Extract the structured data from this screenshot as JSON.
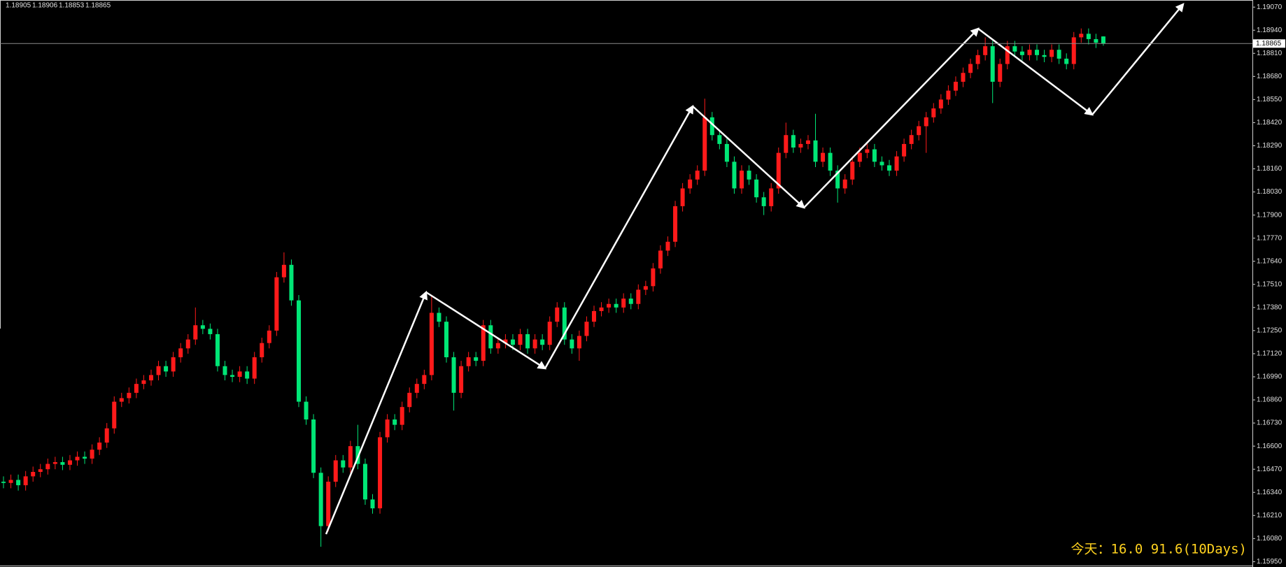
{
  "chart_data": {
    "type": "candlestick",
    "up_color": "#ff1a1a",
    "down_color": "#00e676",
    "ylim": [
      1.1592,
      1.1911
    ],
    "yticks": [
      {
        "value": 1.1907,
        "label": "1.19070"
      },
      {
        "value": 1.1894,
        "label": "1.18940"
      },
      {
        "value": 1.1881,
        "label": "1.18810"
      },
      {
        "value": 1.1868,
        "label": "1.18680"
      },
      {
        "value": 1.1855,
        "label": "1.18550"
      },
      {
        "value": 1.1842,
        "label": "1.18420"
      },
      {
        "value": 1.1829,
        "label": "1.18290"
      },
      {
        "value": 1.1816,
        "label": "1.18160"
      },
      {
        "value": 1.1803,
        "label": "1.18030"
      },
      {
        "value": 1.179,
        "label": "1.17900"
      },
      {
        "value": 1.1777,
        "label": "1.17770"
      },
      {
        "value": 1.1764,
        "label": "1.17640"
      },
      {
        "value": 1.1751,
        "label": "1.17510"
      },
      {
        "value": 1.1738,
        "label": "1.17380"
      },
      {
        "value": 1.1725,
        "label": "1.17250"
      },
      {
        "value": 1.1712,
        "label": "1.17120"
      },
      {
        "value": 1.1699,
        "label": "1.16990"
      },
      {
        "value": 1.1686,
        "label": "1.16860"
      },
      {
        "value": 1.1673,
        "label": "1.16730"
      },
      {
        "value": 1.166,
        "label": "1.16600"
      },
      {
        "value": 1.1647,
        "label": "1.16470"
      },
      {
        "value": 1.1634,
        "label": "1.16340"
      },
      {
        "value": 1.1621,
        "label": "1.16210"
      },
      {
        "value": 1.1608,
        "label": "1.16080"
      },
      {
        "value": 1.1595,
        "label": "1.15950"
      }
    ],
    "annotation": "今天：16.0   91.6(10Days)",
    "open": [
      1.164,
      1.16393,
      1.1641,
      1.1638,
      1.1643,
      1.16455,
      1.1647,
      1.165,
      1.1651,
      1.16495,
      1.1652,
      1.1654,
      1.1653,
      1.1658,
      1.1662,
      1.167,
      1.1685,
      1.1687,
      1.169,
      1.1695,
      1.1697,
      1.17,
      1.1705,
      1.1702,
      1.171,
      1.1715,
      1.172,
      1.1728,
      1.1726,
      1.1723,
      1.1705,
      1.17,
      1.1699,
      1.1702,
      1.1698,
      1.171,
      1.1718,
      1.1725,
      1.1755,
      1.1762,
      1.1742,
      1.1685,
      1.1675,
      1.1645,
      1.1615,
      1.164,
      1.1652,
      1.1648,
      1.166,
      1.165,
      1.163,
      1.1625,
      1.1665,
      1.1675,
      1.1672,
      1.1682,
      1.169,
      1.1695,
      1.17,
      1.1735,
      1.173,
      1.171,
      1.169,
      1.1705,
      1.171,
      1.1708,
      1.1728,
      1.1715,
      1.1718,
      1.172,
      1.1717,
      1.1723,
      1.1715,
      1.172,
      1.1717,
      1.173,
      1.1738,
      1.172,
      1.1715,
      1.1722,
      1.173,
      1.1736,
      1.1738,
      1.174,
      1.1738,
      1.1743,
      1.174,
      1.1748,
      1.175,
      1.176,
      1.177,
      1.1775,
      1.1795,
      1.1805,
      1.181,
      1.1815,
      1.1845,
      1.1835,
      1.183,
      1.182,
      1.1805,
      1.1815,
      1.181,
      1.18,
      1.1795,
      1.1805,
      1.1825,
      1.1835,
      1.1828,
      1.183,
      1.1832,
      1.182,
      1.1825,
      1.1815,
      1.1805,
      1.181,
      1.182,
      1.1825,
      1.1827,
      1.182,
      1.1818,
      1.1815,
      1.1823,
      1.183,
      1.1835,
      1.184,
      1.1845,
      1.185,
      1.1855,
      1.186,
      1.1865,
      1.187,
      1.1875,
      1.188,
      1.1885,
      1.1865,
      1.1875,
      1.1885,
      1.1882,
      1.188,
      1.1883,
      1.188,
      1.1879,
      1.1883,
      1.1878,
      1.1875,
      1.189,
      1.1892,
      1.1889,
      1.18905
    ],
    "high": [
      1.1643,
      1.1644,
      1.1644,
      1.1646,
      1.16485,
      1.165,
      1.1653,
      1.1654,
      1.1654,
      1.1655,
      1.1657,
      1.1657,
      1.1661,
      1.1665,
      1.1673,
      1.1688,
      1.169,
      1.1693,
      1.1698,
      1.17,
      1.1703,
      1.1708,
      1.1708,
      1.1713,
      1.1718,
      1.1723,
      1.1738,
      1.1731,
      1.1729,
      1.1726,
      1.1708,
      1.1703,
      1.1705,
      1.1705,
      1.1713,
      1.1721,
      1.1728,
      1.1758,
      1.1769,
      1.1765,
      1.1745,
      1.1688,
      1.1678,
      1.1648,
      1.1643,
      1.1655,
      1.1655,
      1.1663,
      1.1672,
      1.1653,
      1.1633,
      1.1668,
      1.1678,
      1.1678,
      1.1685,
      1.1693,
      1.1698,
      1.1703,
      1.17451,
      1.1738,
      1.1733,
      1.1713,
      1.1708,
      1.1713,
      1.1713,
      1.1731,
      1.1731,
      1.1721,
      1.1723,
      1.1723,
      1.1726,
      1.1726,
      1.1723,
      1.1723,
      1.1733,
      1.1741,
      1.1741,
      1.1723,
      1.1725,
      1.1733,
      1.1739,
      1.1741,
      1.1743,
      1.1743,
      1.1746,
      1.1746,
      1.1751,
      1.1753,
      1.1763,
      1.1773,
      1.1778,
      1.1798,
      1.1808,
      1.1813,
      1.1818,
      1.18555,
      1.1848,
      1.1838,
      1.1833,
      1.1823,
      1.1818,
      1.1818,
      1.1813,
      1.1803,
      1.1808,
      1.1828,
      1.1842,
      1.1838,
      1.1833,
      1.1835,
      1.1847,
      1.1828,
      1.1828,
      1.1818,
      1.1813,
      1.1823,
      1.1828,
      1.183,
      1.183,
      1.1823,
      1.1821,
      1.1826,
      1.1833,
      1.1838,
      1.1843,
      1.1848,
      1.1853,
      1.1858,
      1.1863,
      1.1868,
      1.1873,
      1.1878,
      1.1883,
      1.189,
      1.1888,
      1.1878,
      1.1888,
      1.1888,
      1.1885,
      1.1886,
      1.1886,
      1.1883,
      1.1886,
      1.1886,
      1.1881,
      1.1893,
      1.1895,
      1.1895,
      1.1892,
      1.18906
    ],
    "low": [
      1.16363,
      1.16363,
      1.1635,
      1.1635,
      1.164,
      1.16425,
      1.1644,
      1.1647,
      1.16465,
      1.16465,
      1.1649,
      1.165,
      1.165,
      1.1655,
      1.1659,
      1.1667,
      1.1682,
      1.1684,
      1.1687,
      1.1692,
      1.1694,
      1.1697,
      1.1699,
      1.1699,
      1.1707,
      1.1712,
      1.1717,
      1.1723,
      1.172,
      1.1702,
      1.1697,
      1.1696,
      1.1696,
      1.1695,
      1.1695,
      1.1707,
      1.1715,
      1.1722,
      1.1752,
      1.1739,
      1.1682,
      1.1672,
      1.1642,
      1.16034,
      1.1612,
      1.1637,
      1.1645,
      1.1645,
      1.1647,
      1.1627,
      1.1622,
      1.1622,
      1.1662,
      1.1669,
      1.1669,
      1.1679,
      1.1687,
      1.1692,
      1.1697,
      1.1727,
      1.1707,
      1.168,
      1.1687,
      1.1702,
      1.1705,
      1.1705,
      1.1712,
      1.1712,
      1.1715,
      1.1714,
      1.1714,
      1.1712,
      1.1712,
      1.1714,
      1.1714,
      1.1727,
      1.1717,
      1.1712,
      1.1708,
      1.1719,
      1.1727,
      1.1733,
      1.1735,
      1.1735,
      1.1735,
      1.1737,
      1.1737,
      1.1745,
      1.1747,
      1.1757,
      1.1767,
      1.1772,
      1.1792,
      1.1802,
      1.1807,
      1.1812,
      1.1832,
      1.1827,
      1.1817,
      1.1802,
      1.1802,
      1.1807,
      1.1797,
      1.179,
      1.1792,
      1.1802,
      1.1822,
      1.1825,
      1.1825,
      1.1827,
      1.1817,
      1.1817,
      1.1812,
      1.1797,
      1.1802,
      1.1807,
      1.1817,
      1.1822,
      1.1817,
      1.1815,
      1.1812,
      1.1812,
      1.182,
      1.1827,
      1.1832,
      1.1825,
      1.1842,
      1.1847,
      1.1852,
      1.1857,
      1.1862,
      1.1867,
      1.1872,
      1.1877,
      1.1853,
      1.1862,
      1.1872,
      1.1879,
      1.1877,
      1.1877,
      1.1877,
      1.1876,
      1.1876,
      1.1875,
      1.1872,
      1.1872,
      1.1887,
      1.1886,
      1.1884,
      1.18853
    ],
    "close": [
      1.16393,
      1.1641,
      1.1638,
      1.1643,
      1.16455,
      1.1647,
      1.165,
      1.1651,
      1.16495,
      1.1652,
      1.1654,
      1.1653,
      1.1658,
      1.1662,
      1.167,
      1.1685,
      1.1687,
      1.169,
      1.1695,
      1.1697,
      1.17,
      1.1705,
      1.1702,
      1.171,
      1.1715,
      1.172,
      1.1728,
      1.1726,
      1.1723,
      1.1705,
      1.17,
      1.1699,
      1.1702,
      1.1698,
      1.171,
      1.1718,
      1.1725,
      1.1755,
      1.1762,
      1.1742,
      1.1685,
      1.1675,
      1.1645,
      1.1615,
      1.164,
      1.1652,
      1.1648,
      1.166,
      1.165,
      1.163,
      1.1625,
      1.1665,
      1.1675,
      1.1672,
      1.1682,
      1.169,
      1.1695,
      1.17,
      1.1735,
      1.173,
      1.171,
      1.169,
      1.1705,
      1.171,
      1.1708,
      1.1728,
      1.1715,
      1.1718,
      1.172,
      1.1717,
      1.1723,
      1.1715,
      1.172,
      1.1717,
      1.173,
      1.1738,
      1.172,
      1.1715,
      1.1722,
      1.173,
      1.1736,
      1.1738,
      1.174,
      1.1738,
      1.1743,
      1.174,
      1.1748,
      1.175,
      1.176,
      1.177,
      1.1775,
      1.1795,
      1.1805,
      1.181,
      1.1815,
      1.1845,
      1.1835,
      1.183,
      1.182,
      1.1805,
      1.1815,
      1.181,
      1.18,
      1.1795,
      1.1805,
      1.1825,
      1.1835,
      1.1828,
      1.183,
      1.1832,
      1.182,
      1.1825,
      1.1815,
      1.1805,
      1.181,
      1.182,
      1.1825,
      1.1827,
      1.182,
      1.1818,
      1.1815,
      1.1823,
      1.183,
      1.1835,
      1.184,
      1.1845,
      1.185,
      1.1855,
      1.186,
      1.1865,
      1.187,
      1.1875,
      1.188,
      1.1885,
      1.1865,
      1.1875,
      1.1885,
      1.1882,
      1.188,
      1.1883,
      1.188,
      1.1879,
      1.1883,
      1.1878,
      1.1875,
      1.189,
      1.1892,
      1.1889,
      1.1887,
      1.18865
    ]
  }
}
